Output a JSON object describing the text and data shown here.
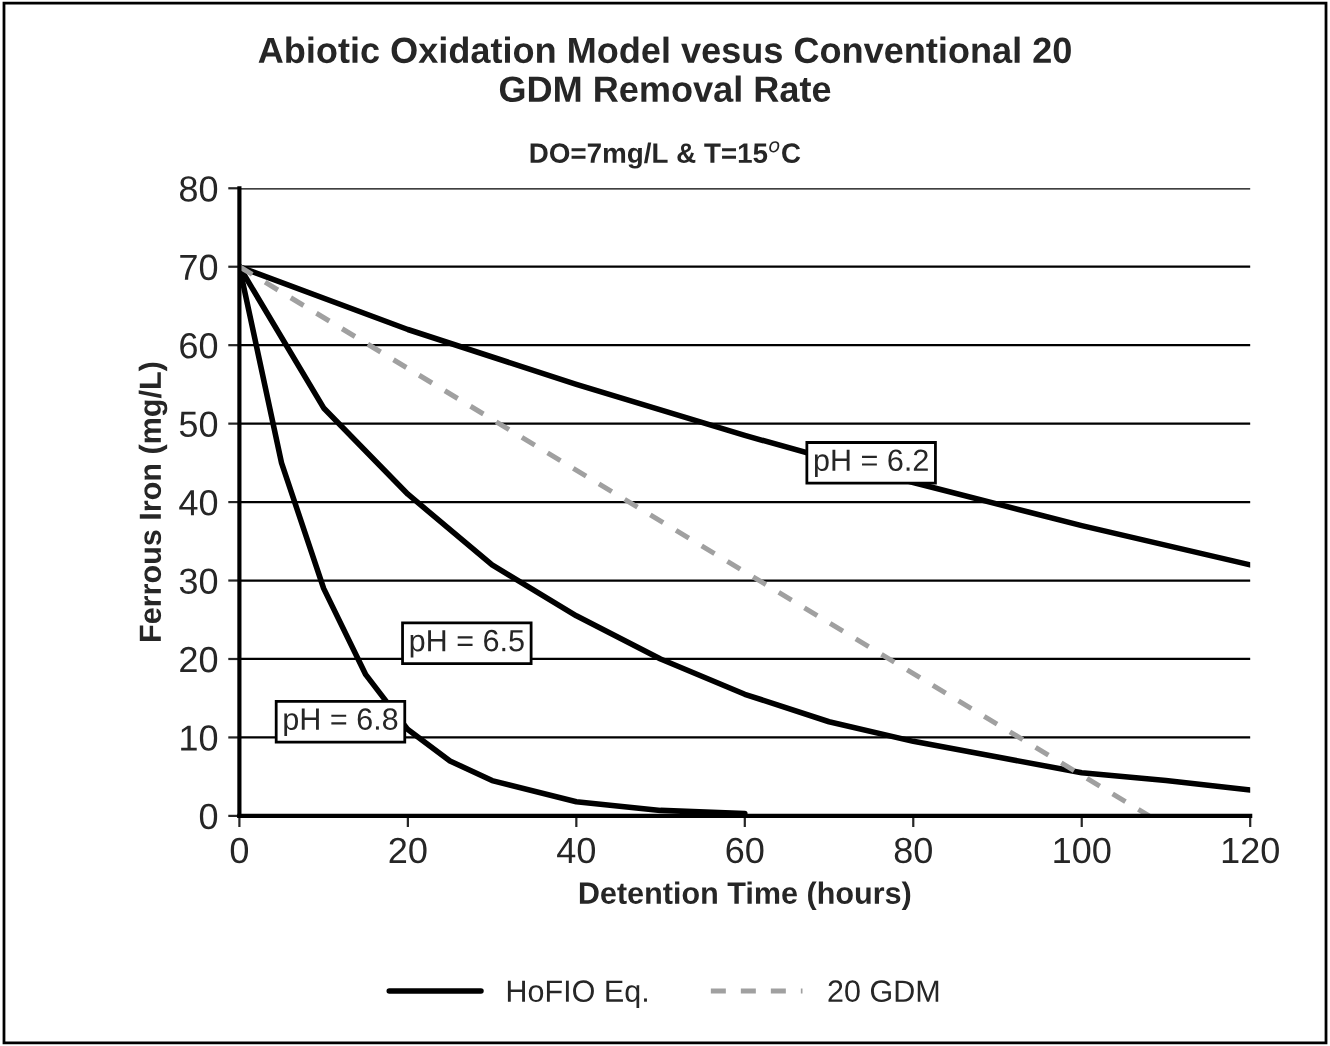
{
  "chart_data": {
    "type": "line",
    "title": "Abiotic Oxidation Model vesus Conventional 20\nGDM Removal Rate",
    "subtitle": "DO=7mg/L & T=15$^{o}$C",
    "xlabel": "Detention Time (hours)",
    "ylabel": "Ferrous Iron (mg/L)",
    "series": [
      {
        "name": "HoFIO Eq.",
        "color": "#000000",
        "line_style": "solid",
        "x": [
          0,
          20,
          40,
          60,
          80,
          100,
          120
        ],
        "values": [
          70,
          62,
          55,
          48.5,
          42.5,
          37,
          32
        ]
      },
      {
        "color": "#000000",
        "line_style": "solid",
        "x": [
          0,
          10,
          20,
          30,
          40,
          50,
          60,
          70,
          80,
          90,
          100,
          110,
          120
        ],
        "values": [
          70,
          52,
          41,
          32,
          25.5,
          20,
          15.5,
          12,
          9.5,
          7.5,
          5.5,
          4.5,
          3.3
        ]
      },
      {
        "color": "#000000",
        "line_style": "solid",
        "x": [
          0,
          5,
          10,
          15,
          20,
          25,
          30,
          40,
          50,
          60
        ],
        "values": [
          70,
          45,
          29,
          18,
          11,
          7,
          4.5,
          1.8,
          0.7,
          0.3
        ]
      },
      {
        "name": "20 GDM",
        "color": "#a0a0a0",
        "line_style": "dashed",
        "x": [
          0,
          108
        ],
        "values": [
          70,
          0
        ]
      }
    ],
    "annotations": [
      {
        "text": "pH = 6.2",
        "x": 75,
        "y": 45
      },
      "pH = 6.5",
      "pH = 6.8"
    ],
    "xlim": [
      0,
      120
    ],
    "xticks": [
      0,
      20,
      40,
      60,
      80,
      100,
      120
    ],
    "ylim": [
      0,
      80
    ],
    "yticks": [
      0,
      10,
      20,
      30,
      40,
      50,
      60,
      70,
      80
    ],
    "grid": "y",
    "legend": "bottom",
    "marker": "none"
  }
}
